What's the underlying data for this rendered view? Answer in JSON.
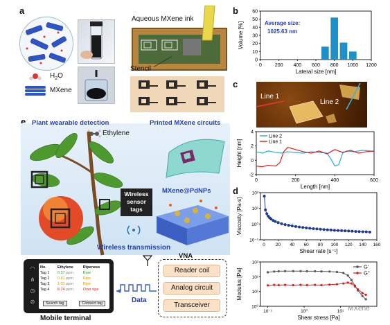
{
  "panel_a": {
    "label": "a",
    "ink_label": "Aqueous MXene ink",
    "stencil_label": "Stencil",
    "h2o_label": "H",
    "h2o_sub": "2",
    "h2o_tail": "O",
    "mxene_label": "MXene"
  },
  "panel_b": {
    "label": "b",
    "annotation_title": "Average size:",
    "annotation_value": "1025.63 nm",
    "colors": {
      "bar": "#1e90c8"
    }
  },
  "panel_c": {
    "label": "c",
    "line1_label": "Line 1",
    "line2_label": "Line 2"
  },
  "panel_d": {
    "label": "d"
  },
  "panel_e": {
    "label": "e",
    "plant_title": "Plant wearable detection",
    "printed_title": "Printed MXene circuits",
    "ethylene_label": "Ethylene",
    "wireless_tags_line1": "Wireless",
    "wireless_tags_line2": "sensor",
    "wireless_tags_line3": "tags",
    "pdnps_label": "MXene@PdNPs",
    "wireless_tx": "Wireless transmission",
    "vna_label": "VNA",
    "vna_items": [
      "Reader coil",
      "Analog circuit",
      "Transceiver"
    ],
    "data_label": "Data",
    "mobile_label": "Mobile terminal",
    "phone": {
      "headers": [
        "No.",
        "Ethylene",
        "Ripeness"
      ],
      "rows": [
        {
          "no": "Tag 1",
          "val": "0.37",
          "unit": "ppm",
          "ripe": "Raw",
          "color": "#2e9e2e"
        },
        {
          "no": "Tag 2",
          "val": "0.81",
          "unit": "ppm",
          "ripe": "Ripe",
          "color": "#d89a00"
        },
        {
          "no": "Tag 3",
          "val": "1.03",
          "unit": "ppm",
          "ripe": "Ripe",
          "color": "#d89a00"
        },
        {
          "no": "Tag 4",
          "val": "8.74",
          "unit": "ppm",
          "ripe": "Over ripe",
          "color": "#d81e1e"
        }
      ],
      "btn_search": "Search tag",
      "btn_connect": "Connect tag"
    }
  },
  "watermark": "MXene",
  "chart_data": [
    {
      "type": "bar",
      "panel": "b",
      "xlabel": "Lateral size [nm]",
      "ylabel": "Volume [%]",
      "xlim": [
        0,
        1200
      ],
      "ylim": [
        0,
        60
      ],
      "xticks": [
        "0",
        "200",
        "400",
        "600",
        "800",
        "1000",
        "1200"
      ],
      "yticks": [
        "0",
        "10",
        "20",
        "30",
        "40",
        "50",
        "60"
      ],
      "x": [
        700,
        800,
        900,
        1000
      ],
      "values": [
        16,
        52,
        21,
        10
      ]
    },
    {
      "type": "line",
      "panel": "c",
      "xlabel": "Length [nm]",
      "ylabel": "Height [nm]",
      "xlim": [
        0,
        600
      ],
      "ylim": [
        -2,
        4
      ],
      "xticks": [
        "0",
        "200",
        "400",
        "600"
      ],
      "yticks": [
        "-2",
        "0",
        "2",
        "4"
      ],
      "legend": "top-left",
      "series": [
        {
          "name": "Line 2",
          "color": "#2aa8d8",
          "x": [
            0,
            30,
            60,
            100,
            130,
            160,
            200,
            240,
            280,
            320,
            360,
            380,
            400,
            420,
            440,
            460,
            500,
            540,
            580,
            600
          ],
          "y": [
            1.2,
            1.0,
            1.3,
            1.1,
            1.0,
            1.2,
            1.1,
            1.0,
            1.2,
            1.1,
            1.0,
            0.2,
            -0.8,
            -0.6,
            1.0,
            1.3,
            1.2,
            1.4,
            1.3,
            1.2
          ]
        },
        {
          "name": "Line 1",
          "color": "#d61f1f",
          "x": [
            0,
            30,
            60,
            100,
            120,
            140,
            160,
            200,
            240,
            280,
            320,
            360,
            400,
            440,
            480,
            520,
            560,
            600
          ],
          "y": [
            -0.8,
            -0.9,
            -0.7,
            -0.8,
            -0.3,
            1.2,
            1.8,
            1.5,
            1.2,
            1.0,
            1.3,
            0.9,
            1.5,
            1.1,
            1.4,
            1.0,
            1.2,
            1.3
          ]
        }
      ]
    },
    {
      "type": "scatter",
      "panel": "d-top",
      "xlabel": "Shear rate [s⁻¹]",
      "ylabel": "Viscosity [Pa·s]",
      "xlim": [
        -5,
        160
      ],
      "ylim_log": [
        -1,
        2
      ],
      "xticks": [
        "0",
        "20",
        "40",
        "60",
        "80",
        "100",
        "120",
        "140",
        "160"
      ],
      "yticks": [
        "10⁻¹",
        "10⁰",
        "10¹",
        "10²"
      ],
      "color": "#1e3a8a",
      "x": [
        0.5,
        2,
        4,
        6,
        8,
        10,
        13,
        16,
        20,
        25,
        30,
        35,
        40,
        45,
        50,
        55,
        60,
        65,
        70,
        75,
        80,
        85,
        90,
        95,
        100,
        105,
        110,
        115,
        120,
        125,
        130,
        135,
        140,
        145,
        150
      ],
      "y": [
        60,
        8,
        4.5,
        3.2,
        2.5,
        2.1,
        1.7,
        1.45,
        1.25,
        1.05,
        0.92,
        0.83,
        0.76,
        0.7,
        0.65,
        0.61,
        0.57,
        0.54,
        0.51,
        0.49,
        0.47,
        0.45,
        0.43,
        0.42,
        0.4,
        0.39,
        0.38,
        0.37,
        0.36,
        0.35,
        0.34,
        0.33,
        0.32,
        0.32,
        0.31
      ]
    },
    {
      "type": "line",
      "panel": "d-bottom",
      "xlabel": "Shear stress [Pa]",
      "ylabel": "Modulus [Pa]",
      "xlim_log": [
        -1.2,
        2
      ],
      "ylim_log": [
        0,
        3
      ],
      "xticks": [
        "10⁻¹",
        "10⁰",
        "10¹"
      ],
      "yticks": [
        "10⁰",
        "10¹",
        "10²",
        "10³"
      ],
      "legend": "top-right",
      "series": [
        {
          "name": "G'",
          "color": "#555555",
          "x": [
            0.1,
            0.15,
            0.2,
            0.3,
            0.5,
            0.8,
            1.2,
            2,
            3,
            5,
            8,
            12,
            16,
            20,
            25,
            30,
            40,
            50
          ],
          "y": [
            200,
            225,
            235,
            240,
            240,
            238,
            236,
            235,
            230,
            225,
            210,
            180,
            120,
            60,
            25,
            12,
            5,
            3
          ]
        },
        {
          "name": "G''",
          "color": "#d61f1f",
          "x": [
            0.1,
            0.15,
            0.2,
            0.3,
            0.5,
            0.8,
            1.2,
            2,
            3,
            5,
            8,
            12,
            16,
            20,
            25,
            30,
            40,
            50
          ],
          "y": [
            26,
            28,
            27,
            28,
            27,
            28,
            27,
            28,
            27,
            29,
            31,
            35,
            40,
            35,
            22,
            14,
            8,
            6
          ]
        }
      ]
    }
  ]
}
